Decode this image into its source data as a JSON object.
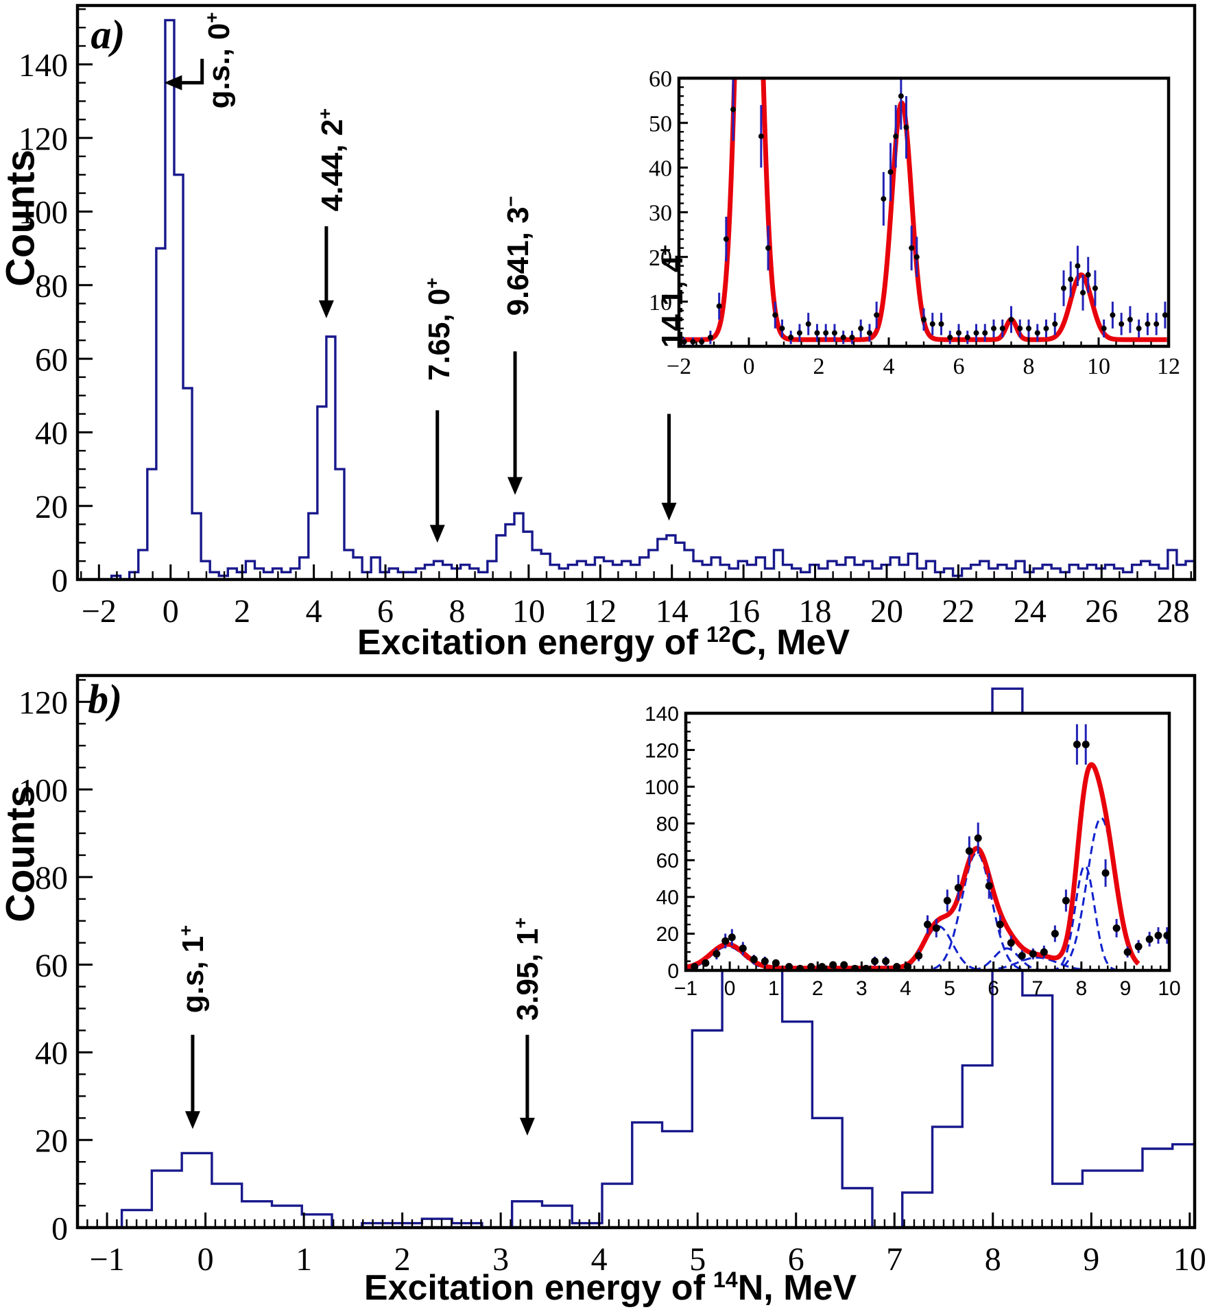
{
  "chart_data": [
    {
      "type": "histogram",
      "id": "12C",
      "panel": "a)",
      "panel_pos": [
        -1.75,
        148
      ],
      "xlabel_parts": [
        "Excitation energy of",
        "12",
        "C, MeV"
      ],
      "ylabel": "Counts",
      "xlim": [
        -2.6,
        28.6
      ],
      "ylim": [
        0,
        156
      ],
      "xticks": [
        -2,
        0,
        2,
        4,
        6,
        8,
        10,
        12,
        14,
        16,
        18,
        20,
        22,
        24,
        26,
        28
      ],
      "yticks": [
        0,
        20,
        40,
        60,
        80,
        100,
        120,
        140
      ],
      "x_minor": 0.5,
      "y_minor": 5,
      "color": "#18188c",
      "bin_start": -2.15,
      "bin_width": 0.25,
      "counts": [
        0,
        0,
        1,
        0,
        2,
        8,
        30,
        90,
        152,
        110,
        52,
        18,
        5,
        2,
        1,
        3,
        2,
        5,
        3,
        2,
        3,
        2,
        3,
        6,
        18,
        47,
        66,
        30,
        8,
        6,
        2,
        6,
        2,
        3,
        2,
        2,
        3,
        4,
        5,
        4,
        3,
        4,
        3,
        2,
        5,
        12,
        15,
        18,
        13,
        8,
        7,
        4,
        3,
        4,
        5,
        4,
        6,
        5,
        4,
        5,
        4,
        6,
        8,
        11,
        12,
        10,
        8,
        5,
        4,
        6,
        4,
        3,
        5,
        4,
        6,
        3,
        8,
        4,
        3,
        2,
        4,
        3,
        5,
        4,
        6,
        4,
        5,
        3,
        4,
        6,
        4,
        7,
        3,
        5,
        2,
        3,
        1,
        3,
        4,
        5,
        3,
        4,
        3,
        5,
        2,
        3,
        4,
        3,
        2,
        4,
        3,
        4,
        3,
        4,
        3,
        2,
        4,
        5,
        4,
        3,
        8,
        4,
        5,
        2
      ],
      "annotations": [
        {
          "text": "g.s., 0",
          "sup": "+",
          "cx": 1.35,
          "cy": 141,
          "arrow_pts": [
            [
              0.88,
              141.5
            ],
            [
              0.88,
              135
            ],
            [
              -0.18,
              135
            ]
          ]
        },
        {
          "text": "4.44, 2",
          "sup": "+",
          "cx": 4.5,
          "cy": 114,
          "arrow_pts": [
            [
              4.35,
              96
            ],
            [
              4.35,
              71
            ]
          ]
        },
        {
          "text": "7.65, 0",
          "sup": "+",
          "cx": 7.5,
          "cy": 68,
          "arrow_pts": [
            [
              7.45,
              46
            ],
            [
              7.45,
              10
            ]
          ]
        },
        {
          "text": "9.641, 3",
          "sup": "−",
          "cx": 9.7,
          "cy": 88,
          "arrow_pts": [
            [
              9.62,
              62
            ],
            [
              9.62,
              23
            ]
          ]
        },
        {
          "text": "14.1, 4",
          "sup": "+",
          "cx": 14.0,
          "cy": 77,
          "arrow_pts": [
            [
              13.92,
              45
            ],
            [
              13.92,
              16
            ]
          ]
        }
      ],
      "inset": {
        "xlim": [
          -2,
          12
        ],
        "ylim": [
          0,
          60
        ],
        "xticks": [
          -2,
          0,
          2,
          4,
          6,
          8,
          10,
          12
        ],
        "yticks": [
          10,
          20,
          30,
          40,
          50,
          60
        ],
        "x_minor": 0.5,
        "y_minor": 2,
        "fit_color": "#e8000b",
        "fit_baseline": 1.5,
        "fit_range": [
          -1.95,
          11.95
        ],
        "fit_peaks": [
          {
            "center": 0.0,
            "sigma": 0.3,
            "height": 150
          },
          {
            "center": 4.37,
            "sigma": 0.28,
            "height": 53
          },
          {
            "center": 7.5,
            "sigma": 0.15,
            "height": 4.5
          },
          {
            "center": 9.5,
            "sigma": 0.3,
            "height": 14.5
          }
        ],
        "point_color": "#000000",
        "errorbar_color": "#2222b8",
        "points": [
          [
            -1.85,
            1,
            1
          ],
          [
            -1.6,
            1,
            1
          ],
          [
            -1.35,
            1,
            1
          ],
          [
            -1.1,
            2,
            1.5
          ],
          [
            -0.85,
            9,
            3
          ],
          [
            -0.65,
            24,
            5
          ],
          [
            -0.45,
            53,
            7
          ],
          [
            0.35,
            47,
            7
          ],
          [
            0.55,
            22,
            5
          ],
          [
            0.75,
            7,
            3
          ],
          [
            0.95,
            4,
            2
          ],
          [
            1.2,
            2,
            1.5
          ],
          [
            1.45,
            3,
            2
          ],
          [
            1.7,
            5,
            2.5
          ],
          [
            1.95,
            3,
            2
          ],
          [
            2.2,
            3,
            2
          ],
          [
            2.45,
            3,
            2
          ],
          [
            2.7,
            2,
            1.5
          ],
          [
            2.95,
            2,
            1.5
          ],
          [
            3.2,
            4,
            2
          ],
          [
            3.45,
            3,
            2
          ],
          [
            3.65,
            7,
            3
          ],
          [
            3.85,
            33,
            6
          ],
          [
            4.05,
            39,
            6.5
          ],
          [
            4.2,
            47,
            7
          ],
          [
            4.35,
            56,
            7.5
          ],
          [
            4.5,
            49,
            7
          ],
          [
            4.65,
            22,
            5
          ],
          [
            4.8,
            20,
            4.5
          ],
          [
            5.0,
            6,
            2.5
          ],
          [
            5.25,
            5,
            2.5
          ],
          [
            5.5,
            5,
            2.5
          ],
          [
            5.75,
            2,
            1.5
          ],
          [
            6.0,
            3,
            2
          ],
          [
            6.25,
            2,
            1.5
          ],
          [
            6.5,
            3,
            2
          ],
          [
            6.75,
            3,
            2
          ],
          [
            7.0,
            4,
            2
          ],
          [
            7.25,
            4,
            2
          ],
          [
            7.5,
            6,
            3
          ],
          [
            7.75,
            4,
            2
          ],
          [
            8.0,
            4,
            2
          ],
          [
            8.25,
            3,
            2
          ],
          [
            8.5,
            4,
            2
          ],
          [
            8.75,
            5,
            2.5
          ],
          [
            9.0,
            13,
            4
          ],
          [
            9.2,
            15,
            4
          ],
          [
            9.4,
            18,
            4.5
          ],
          [
            9.55,
            12,
            4
          ],
          [
            9.7,
            16,
            4
          ],
          [
            9.9,
            13,
            4
          ],
          [
            10.15,
            4,
            2
          ],
          [
            10.4,
            7,
            3
          ],
          [
            10.65,
            5,
            2.5
          ],
          [
            10.9,
            6,
            3
          ],
          [
            11.15,
            4,
            2
          ],
          [
            11.4,
            5,
            2.5
          ],
          [
            11.65,
            5,
            2.5
          ],
          [
            11.9,
            7,
            3
          ]
        ]
      }
    },
    {
      "type": "histogram",
      "id": "14N",
      "panel": "b)",
      "panel_pos": [
        -1.02,
        120.5
      ],
      "xlabel_parts": [
        "Excitation energy of",
        "14",
        "N, MeV"
      ],
      "ylabel": "Counts",
      "xlim": [
        -1.3,
        10.05
      ],
      "ylim": [
        0,
        126
      ],
      "xticks": [
        -1,
        0,
        1,
        2,
        3,
        4,
        5,
        6,
        7,
        8,
        9,
        10
      ],
      "yticks": [
        0,
        20,
        40,
        60,
        80,
        100,
        120
      ],
      "x_minor": 0.1,
      "y_minor": 5,
      "color": "#18188c",
      "bin_start": -0.85,
      "bin_width": 0.305,
      "counts": [
        4,
        13,
        17,
        10,
        6,
        5,
        3,
        0,
        1,
        1,
        2,
        1,
        0,
        6,
        5,
        1,
        10,
        24,
        22,
        45,
        62,
        65,
        47,
        25,
        9,
        0,
        8,
        23,
        37,
        123,
        53,
        10,
        13,
        13,
        18,
        19,
        19
      ],
      "annotations": [
        {
          "text": "g.s, 1",
          "sup": "+",
          "cx": -0.13,
          "cy": 59,
          "arrow_pts": [
            [
              -0.13,
              44
            ],
            [
              -0.13,
              22.5
            ]
          ]
        },
        {
          "text": "3.95, 1",
          "sup": "+",
          "cx": 3.27,
          "cy": 59,
          "arrow_pts": [
            [
              3.27,
              44
            ],
            [
              3.27,
              21
            ]
          ]
        }
      ],
      "inset": {
        "xlim": [
          -1,
          10
        ],
        "ylim": [
          0,
          140
        ],
        "xticks": [
          -1,
          0,
          1,
          2,
          3,
          4,
          5,
          6,
          7,
          8,
          9,
          10
        ],
        "yticks": [
          0,
          20,
          40,
          60,
          80,
          100,
          120,
          140
        ],
        "x_minor": 0.2,
        "y_minor": 5,
        "fit_color": "#e8000b",
        "fit_baseline": 1.2,
        "fit_range": [
          -1,
          9.3
        ],
        "fit_peaks": [
          {
            "center": -0.05,
            "sigma": 0.38,
            "height": 13
          },
          {
            "center": 4.75,
            "sigma": 0.32,
            "height": 24
          },
          {
            "center": 5.62,
            "sigma": 0.34,
            "height": 64
          },
          {
            "center": 6.3,
            "sigma": 0.28,
            "height": 12
          },
          {
            "center": 7.0,
            "sigma": 0.45,
            "height": 7
          },
          {
            "center": 8.08,
            "sigma": 0.22,
            "height": 57
          },
          {
            "center": 8.45,
            "sigma": 0.32,
            "height": 83
          }
        ],
        "component_color": "#1122cc",
        "point_color": "#000000",
        "errorbar_color": "#2222b8",
        "points": [
          [
            -0.8,
            2,
            1.5
          ],
          [
            -0.55,
            4,
            2
          ],
          [
            -0.3,
            9,
            3
          ],
          [
            -0.1,
            16,
            4
          ],
          [
            0.05,
            18,
            4.5
          ],
          [
            0.3,
            12,
            3.5
          ],
          [
            0.55,
            6,
            2.5
          ],
          [
            0.8,
            5,
            2.5
          ],
          [
            1.05,
            4,
            2
          ],
          [
            1.35,
            2,
            1.5
          ],
          [
            1.6,
            1,
            1
          ],
          [
            1.85,
            2,
            1.5
          ],
          [
            2.1,
            2,
            1.5
          ],
          [
            2.35,
            3,
            2
          ],
          [
            2.6,
            3,
            2
          ],
          [
            2.85,
            1,
            1
          ],
          [
            3.1,
            1,
            1
          ],
          [
            3.3,
            5,
            2.5
          ],
          [
            3.55,
            5,
            2.5
          ],
          [
            3.8,
            2,
            1.5
          ],
          [
            4.05,
            2,
            1.5
          ],
          [
            4.3,
            8,
            3
          ],
          [
            4.5,
            25,
            5
          ],
          [
            4.7,
            23,
            5
          ],
          [
            4.95,
            38,
            6
          ],
          [
            5.2,
            45,
            7
          ],
          [
            5.45,
            65,
            8
          ],
          [
            5.65,
            72,
            8.5
          ],
          [
            5.9,
            46,
            7
          ],
          [
            6.15,
            25,
            5
          ],
          [
            6.4,
            15,
            4
          ],
          [
            6.65,
            8,
            3
          ],
          [
            6.9,
            9,
            3
          ],
          [
            7.15,
            10,
            3.5
          ],
          [
            7.4,
            20,
            4.5
          ],
          [
            7.65,
            38,
            6
          ],
          [
            7.9,
            123,
            11
          ],
          [
            8.1,
            123,
            11
          ],
          [
            8.55,
            53,
            7.5
          ],
          [
            8.8,
            23,
            5
          ],
          [
            9.05,
            10,
            3
          ],
          [
            9.3,
            13,
            3.5
          ],
          [
            9.55,
            17,
            4
          ],
          [
            9.75,
            19,
            4.5
          ],
          [
            9.95,
            19,
            4.5
          ]
        ]
      }
    }
  ]
}
